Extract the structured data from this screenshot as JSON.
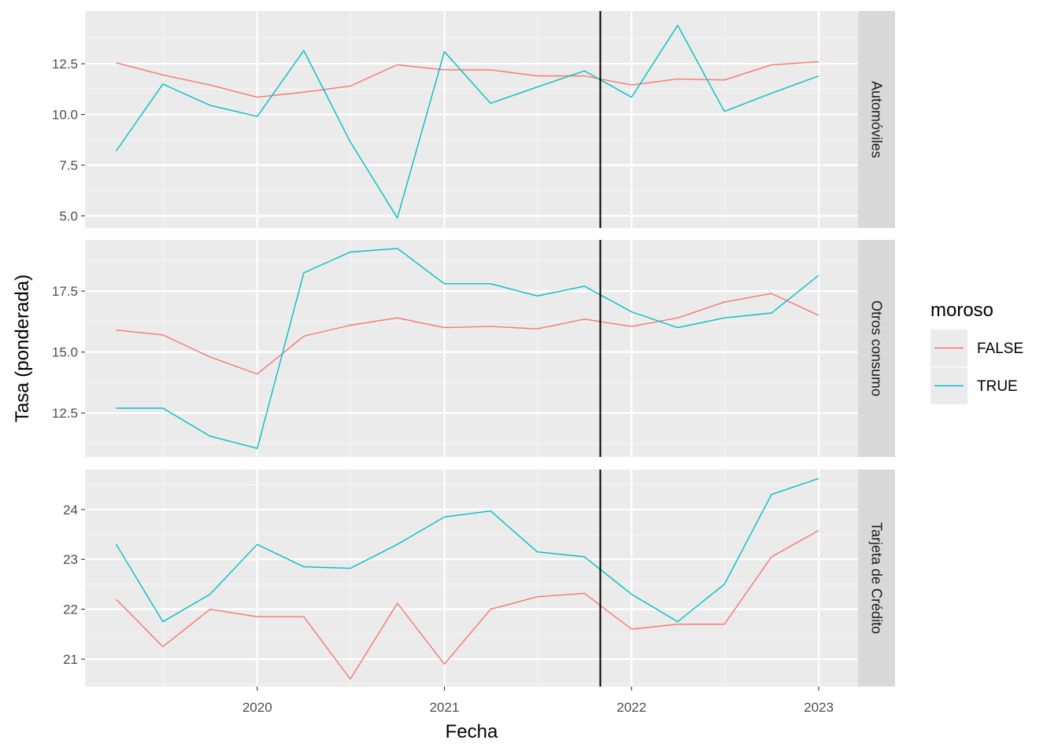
{
  "chart_data": {
    "type": "line",
    "xlabel": "Fecha",
    "ylabel": "Tasa (ponderada)",
    "x_ticks": [
      "2020",
      "2021",
      "2022",
      "2023"
    ],
    "x": [
      "2019-04-01",
      "2019-07-01",
      "2019-10-01",
      "2020-01-01",
      "2020-04-01",
      "2020-07-01",
      "2020-10-01",
      "2021-01-01",
      "2021-04-01",
      "2021-07-01",
      "2021-10-01",
      "2022-01-01",
      "2022-04-01",
      "2022-07-01",
      "2022-10-01",
      "2023-01-01"
    ],
    "vline_x": "2021-11-01",
    "grid": true,
    "legend": {
      "title": "moroso",
      "position": "right",
      "entries": [
        {
          "label": "FALSE",
          "color": "#F8766D"
        },
        {
          "label": "TRUE",
          "color": "#00BFC4"
        }
      ]
    },
    "panels": [
      {
        "strip": "Automóviles",
        "y_ticks": [
          "5.0",
          "7.5",
          "10.0",
          "12.5"
        ],
        "ylim": [
          4.4,
          15.1
        ],
        "series": [
          {
            "name": "FALSE",
            "color": "#F8766D",
            "values": [
              12.55,
              11.95,
              11.45,
              10.85,
              11.1,
              11.4,
              12.45,
              12.2,
              12.2,
              11.9,
              11.9,
              11.45,
              11.75,
              11.7,
              12.45,
              12.6
            ]
          },
          {
            "name": "TRUE",
            "color": "#00BFC4",
            "values": [
              8.2,
              11.5,
              10.45,
              9.9,
              13.15,
              8.65,
              4.9,
              13.1,
              10.55,
              11.35,
              12.15,
              10.85,
              14.4,
              10.15,
              11.05,
              11.9
            ]
          }
        ]
      },
      {
        "strip": "Otros consumo",
        "y_ticks": [
          "12.5",
          "15.0",
          "17.5"
        ],
        "ylim": [
          10.7,
          19.6
        ],
        "series": [
          {
            "name": "FALSE",
            "color": "#F8766D",
            "values": [
              15.9,
              15.7,
              14.8,
              14.1,
              15.65,
              16.1,
              16.4,
              16.0,
              16.05,
              15.95,
              16.35,
              16.05,
              16.4,
              17.05,
              17.4,
              16.5
            ]
          },
          {
            "name": "TRUE",
            "color": "#00BFC4",
            "values": [
              12.7,
              12.7,
              11.55,
              11.05,
              18.25,
              19.1,
              19.25,
              17.8,
              17.8,
              17.3,
              17.7,
              16.65,
              16.0,
              16.4,
              16.6,
              18.15
            ]
          }
        ]
      },
      {
        "strip": "Tarjeta de Crédito",
        "y_ticks": [
          "21",
          "22",
          "23",
          "24"
        ],
        "ylim": [
          20.45,
          24.8
        ],
        "series": [
          {
            "name": "FALSE",
            "color": "#F8766D",
            "values": [
              22.2,
              21.25,
              22.0,
              21.85,
              21.85,
              20.6,
              22.12,
              20.9,
              22.0,
              22.25,
              22.32,
              21.6,
              21.7,
              21.7,
              23.05,
              23.58
            ]
          },
          {
            "name": "TRUE",
            "color": "#00BFC4",
            "values": [
              23.3,
              21.75,
              22.3,
              23.3,
              22.85,
              22.82,
              23.3,
              23.85,
              23.97,
              23.15,
              23.05,
              22.3,
              21.75,
              22.5,
              24.3,
              24.62
            ]
          }
        ]
      }
    ]
  }
}
